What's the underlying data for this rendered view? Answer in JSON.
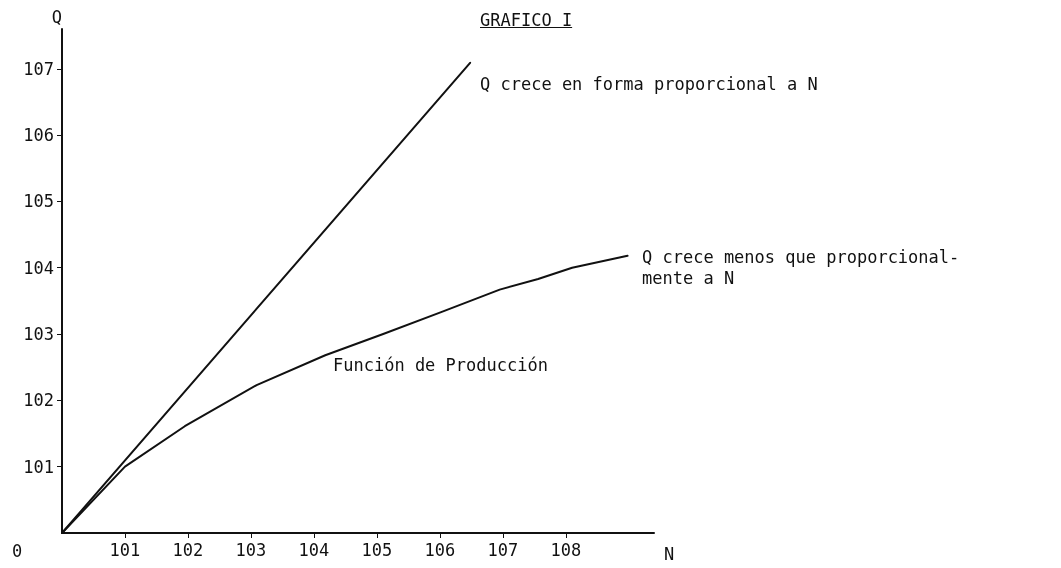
{
  "chart_data": {
    "type": "line",
    "title": "GRAFICO I",
    "xlabel": "N",
    "ylabel": "Q",
    "xlim": [
      100,
      109.4
    ],
    "ylim": [
      100,
      107.6
    ],
    "xticks": [
      101,
      102,
      103,
      104,
      105,
      106,
      107,
      108
    ],
    "yticks": [
      101,
      102,
      103,
      104,
      105,
      106,
      107
    ],
    "grid": false,
    "marker": "none",
    "line_style": "solid",
    "series": [
      {
        "color": "#111111",
        "x": [
          100,
          106.48
        ],
        "values": [
          100,
          107.09
        ]
      },
      {
        "color": "#111111",
        "x": [
          100,
          101,
          101.95,
          103.09,
          104.18,
          105.1,
          106.02,
          106.95,
          107.56,
          108.1,
          108.98
        ],
        "values": [
          100,
          101.0,
          101.61,
          102.23,
          102.68,
          103.0,
          103.33,
          103.67,
          103.83,
          104.0,
          104.18
        ]
      }
    ],
    "annotations": [
      "Q crece en forma proporcional a N",
      "Q crece menos que proporcional-\nmente a N",
      "Función de Producción",
      "0"
    ]
  }
}
